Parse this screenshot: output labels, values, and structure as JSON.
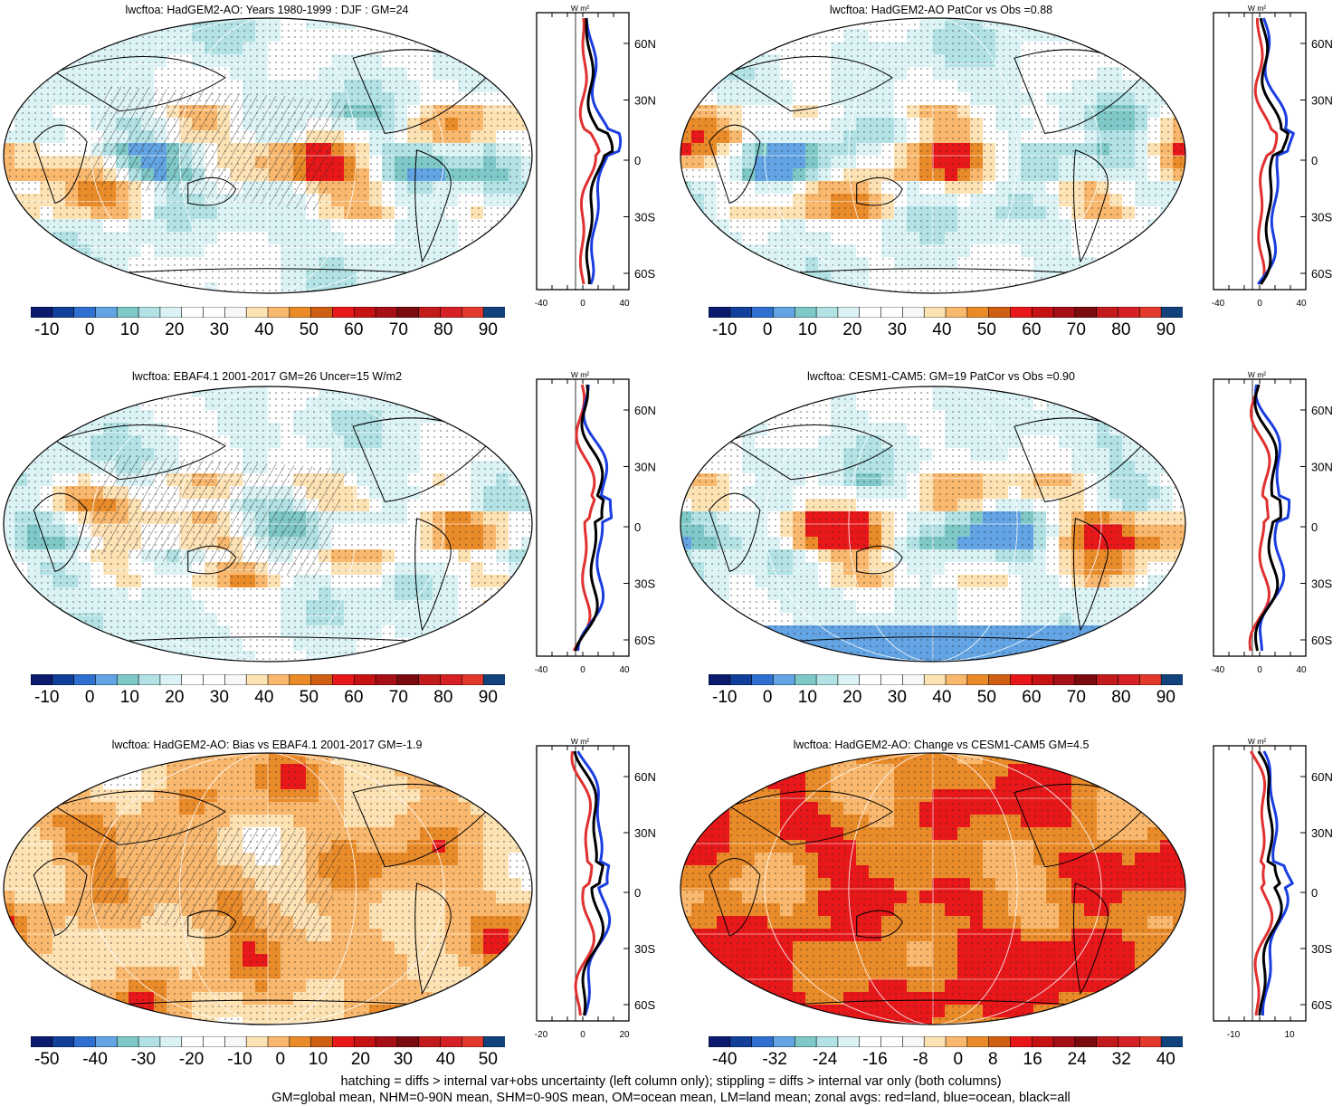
{
  "panels": [
    {
      "title": "lwcftoa: HadGEM2-AO: Years 1980-1999 : DJF : GM=24",
      "scheme": "mean",
      "hatch": true,
      "cbar_labels": [
        "-10",
        "0",
        "10",
        "20",
        "30",
        "40",
        "50",
        "60",
        "70",
        "80",
        "90"
      ],
      "zonal_ticks": [
        "-40",
        "0",
        "40"
      ],
      "zonal_unit": "W m²"
    },
    {
      "title": "lwcftoa: HadGEM2-AO PatCor vs Obs =0.88",
      "scheme": "mean",
      "hatch": false,
      "cbar_labels": [
        "-10",
        "0",
        "10",
        "20",
        "30",
        "40",
        "50",
        "60",
        "70",
        "80",
        "90"
      ],
      "zonal_ticks": [
        "-40",
        "0",
        "40"
      ],
      "zonal_unit": "W m²"
    },
    {
      "title": "lwcftoa: EBAF4.1 2001-2017 GM=26 Uncer=15 W/m2",
      "scheme": "mean",
      "hatch": true,
      "cbar_labels": [
        "-10",
        "0",
        "10",
        "20",
        "30",
        "40",
        "50",
        "60",
        "70",
        "80",
        "90"
      ],
      "zonal_ticks": [
        "-40",
        "0",
        "40"
      ],
      "zonal_unit": "W m²"
    },
    {
      "title": "lwcftoa: CESM1-CAM5: GM=19 PatCor vs Obs =0.90",
      "scheme": "mean",
      "hatch": false,
      "cbar_labels": [
        "-10",
        "0",
        "10",
        "20",
        "30",
        "40",
        "50",
        "60",
        "70",
        "80",
        "90"
      ],
      "zonal_ticks": [
        "-40",
        "0",
        "40"
      ],
      "zonal_unit": "W m²"
    },
    {
      "title": "lwcftoa: HadGEM2-AO: Bias vs EBAF4.1 2001-2017 GM=-1.9",
      "scheme": "bias",
      "hatch": true,
      "cbar_labels": [
        "-50",
        "-40",
        "-30",
        "-20",
        "-10",
        "0",
        "10",
        "20",
        "30",
        "40",
        "50"
      ],
      "zonal_ticks": [
        "-20",
        "0",
        "20"
      ],
      "zonal_unit": "W m²"
    },
    {
      "title": "lwcftoa: HadGEM2-AO: Change vs CESM1-CAM5 GM=4.5",
      "scheme": "change",
      "hatch": false,
      "cbar_labels": [
        "-40",
        "-32",
        "-24",
        "-16",
        "-8",
        "0",
        "8",
        "16",
        "24",
        "32",
        "40"
      ],
      "zonal_ticks": [
        "-10",
        "10"
      ],
      "zonal_unit": "W m²"
    }
  ],
  "lat_labels": [
    "60N",
    "30N",
    "0",
    "30S",
    "60S"
  ],
  "colors": {
    "land": "#e03030",
    "ocean": "#1a3ee0",
    "all": "#000000",
    "cbar": [
      "#0b1a6e",
      "#123f9a",
      "#2e6fd0",
      "#62a4e4",
      "#7fc8c8",
      "#b2e2e4",
      "#dcf3f6",
      "#ffffff",
      "#ffffff",
      "#f7f7f7",
      "#fde2b4",
      "#f9b86d",
      "#ea8b2a",
      "#cf5f13",
      "#e8181a",
      "#c51213",
      "#a50f15",
      "#7a0c10",
      "#c21b1b",
      "#d52126",
      "#e2392c",
      "#12427c"
    ]
  },
  "footer": {
    "line1": "hatching = diffs > internal var+obs uncertainty (left column only); stippling = diffs > internal var only (both columns)",
    "line2": "GM=global mean, NHM=0-90N mean, SHM=0-90S mean, OM=ocean mean, LM=land mean; zonal avgs: red=land, blue=ocean, black=all"
  }
}
